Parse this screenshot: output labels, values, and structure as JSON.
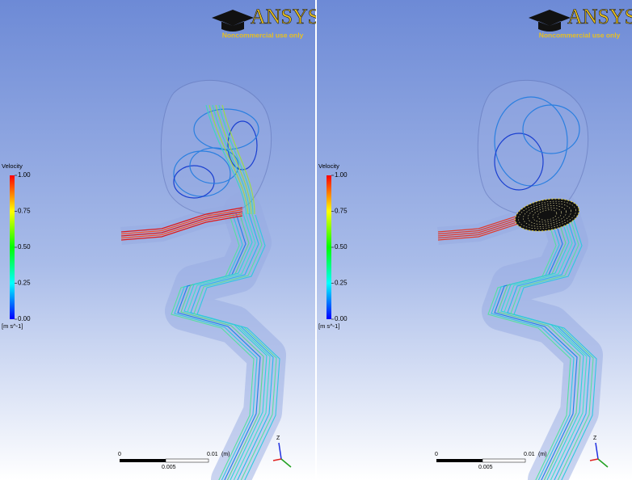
{
  "panels": [
    {
      "logo": "ANSYS",
      "notice": "Noncommercial use only",
      "legend": {
        "title": "Velocity",
        "ticks": [
          "1.00",
          "0.75",
          "0.50",
          "0.25",
          "0.00"
        ],
        "unit": "[m s^-1]"
      },
      "scale_bar": {
        "start": "0",
        "end": "0.01",
        "unit": "(m)",
        "mid": "0.005"
      },
      "axes": {
        "z": "Z"
      }
    },
    {
      "logo": "ANSYS",
      "notice": "Noncommercial use only",
      "legend": {
        "title": "Velocity",
        "ticks": [
          "1.00",
          "0.75",
          "0.50",
          "0.25",
          "0.00"
        ],
        "unit": "[m s^-1]"
      },
      "scale_bar": {
        "start": "0",
        "end": "0.01",
        "unit": "(m)",
        "mid": "0.005"
      },
      "axes": {
        "z": "Z"
      }
    }
  ]
}
